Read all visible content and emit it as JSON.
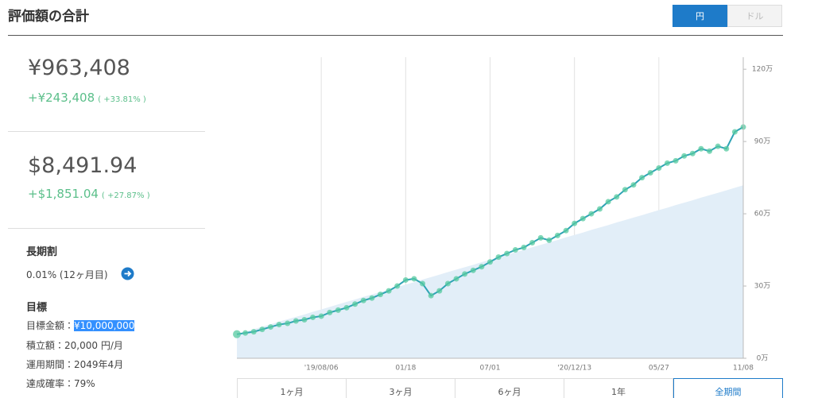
{
  "header": {
    "title": "評価額の合計",
    "currency_toggle": [
      "円",
      "ドル"
    ]
  },
  "summary": {
    "jpy": {
      "value": "¥963,408",
      "gain": "+¥243,408",
      "gain_pct": "( +33.81% )"
    },
    "usd": {
      "value": "$8,491.94",
      "gain": "+$1,851.04",
      "gain_pct": "( +27.87% )"
    }
  },
  "long_term": {
    "title": "長期割",
    "rate": "0.01% (12ヶ月目)"
  },
  "goal": {
    "title": "目標",
    "rows": [
      [
        "目標金額：",
        "¥10,000,000"
      ],
      [
        "積立額：",
        "20,000 円/月"
      ],
      [
        "運用期間：",
        "2049年4月"
      ],
      [
        "達成確率：",
        "79%"
      ]
    ]
  },
  "period_buttons": [
    "1ヶ月",
    "3ヶ月",
    "6ヶ月",
    "1年",
    "全期間"
  ],
  "chart_data": {
    "type": "line",
    "x": [
      null,
      null,
      null,
      null,
      null,
      null,
      null,
      null,
      null,
      null,
      "'19/08/06",
      null,
      null,
      null,
      null,
      null,
      null,
      null,
      null,
      null,
      "01/18",
      null,
      null,
      null,
      null,
      null,
      null,
      null,
      null,
      null,
      "07/01",
      null,
      null,
      null,
      null,
      null,
      null,
      null,
      null,
      null,
      "'20/12/13",
      null,
      null,
      null,
      null,
      null,
      null,
      null,
      null,
      null,
      "05/27",
      null,
      null,
      null,
      null,
      null,
      null,
      null,
      null,
      null,
      "11/08"
    ],
    "series": [
      {
        "type": "area",
        "color": "#e2eef8",
        "values": [
          10,
          11,
          12.1,
          13.1,
          14.1,
          15.2,
          16.2,
          17.2,
          18.2,
          19.3,
          20.3,
          21.3,
          22.4,
          23.4,
          24.4,
          25.5,
          26.5,
          27.5,
          28.5,
          29.6,
          30.6,
          31.6,
          32.7,
          33.7,
          34.7,
          35.8,
          36.8,
          37.8,
          38.8,
          39.9,
          40.9,
          41.9,
          43,
          44,
          45,
          46.1,
          47.1,
          48.1,
          49.1,
          50.2,
          51.2,
          52.2,
          53.3,
          54.3,
          55.3,
          56.4,
          57.4,
          58.4,
          59.4,
          60.5,
          61.5,
          62.5,
          63.6,
          64.6,
          65.6,
          66.7,
          67.7,
          68.7,
          69.7,
          70.8,
          71.8
        ]
      },
      {
        "type": "line",
        "color": "#2fa3b5",
        "marker_color": "#56c9a0",
        "values": [
          10,
          10.5,
          11,
          12,
          13,
          14,
          14.5,
          15.5,
          16,
          17,
          17.5,
          19,
          20,
          21,
          22.5,
          24,
          25,
          26.5,
          28,
          30,
          32.5,
          33,
          31,
          26,
          28,
          31,
          33,
          35,
          36.5,
          38,
          40,
          42,
          43.5,
          45,
          46,
          48,
          50,
          49,
          51,
          53,
          56,
          58,
          60,
          62,
          65,
          67,
          70,
          72,
          75,
          77,
          79,
          81,
          82,
          84,
          85,
          87,
          86,
          88,
          87,
          94,
          96
        ]
      }
    ],
    "ylim": [
      0,
      125
    ],
    "yticks": [
      {
        "value": 0,
        "label": "0万"
      },
      {
        "value": 30,
        "label": "30万"
      },
      {
        "value": 60,
        "label": "60万"
      },
      {
        "value": 90,
        "label": "90万"
      },
      {
        "value": 120,
        "label": "120万"
      }
    ],
    "grid": true
  }
}
